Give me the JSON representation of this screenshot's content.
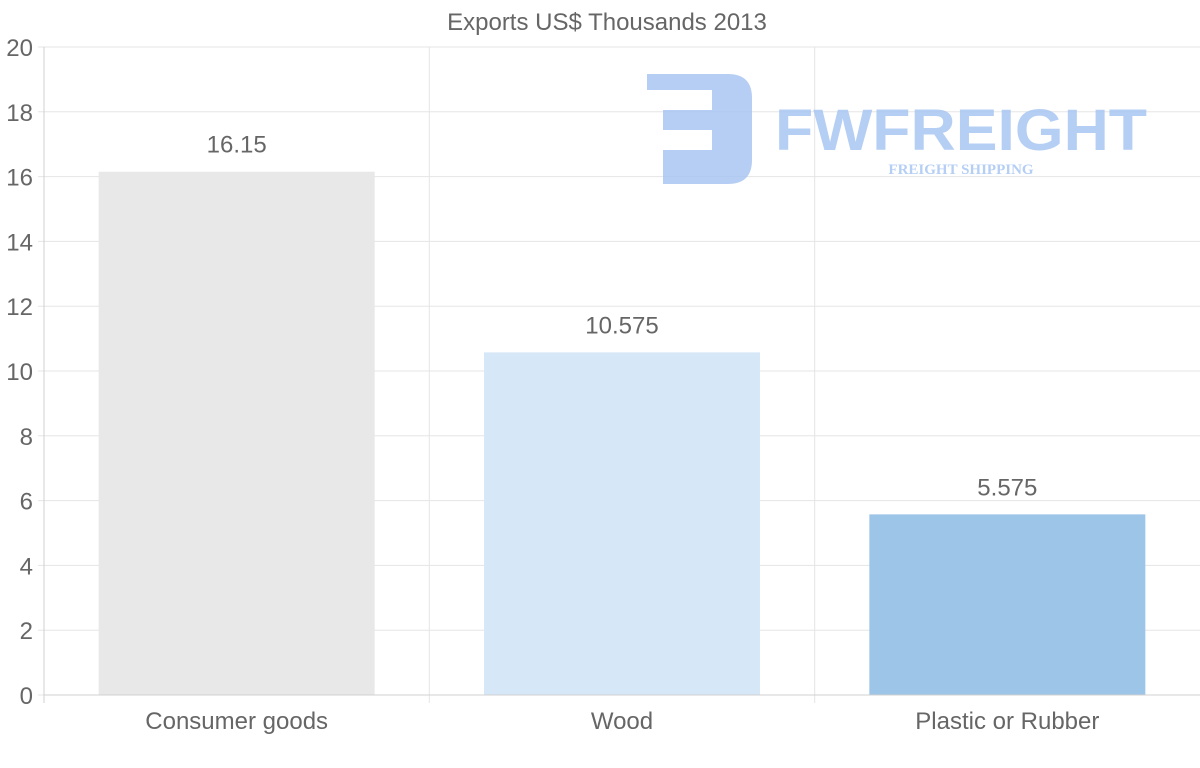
{
  "chart_data": {
    "type": "bar",
    "title": "Exports US$ Thousands 2013",
    "categories": [
      "Consumer goods",
      "Wood",
      "Plastic or Rubber"
    ],
    "values": [
      16.15,
      10.575,
      5.575
    ],
    "data_labels": [
      "16.15",
      "10.575",
      "5.575"
    ],
    "colors": [
      "#e8e8e8",
      "#d6e7f8",
      "#9dc5e8"
    ],
    "xlabel": "",
    "ylabel": "",
    "ylim": [
      0,
      20
    ],
    "yticks": [
      0,
      2,
      4,
      6,
      8,
      10,
      12,
      14,
      16,
      18,
      20
    ],
    "grid": true,
    "legend": "none"
  },
  "watermark": {
    "brand": "FWFREIGHT",
    "tagline": "FREIGHT SHIPPING",
    "color": "#a9c6f2"
  }
}
